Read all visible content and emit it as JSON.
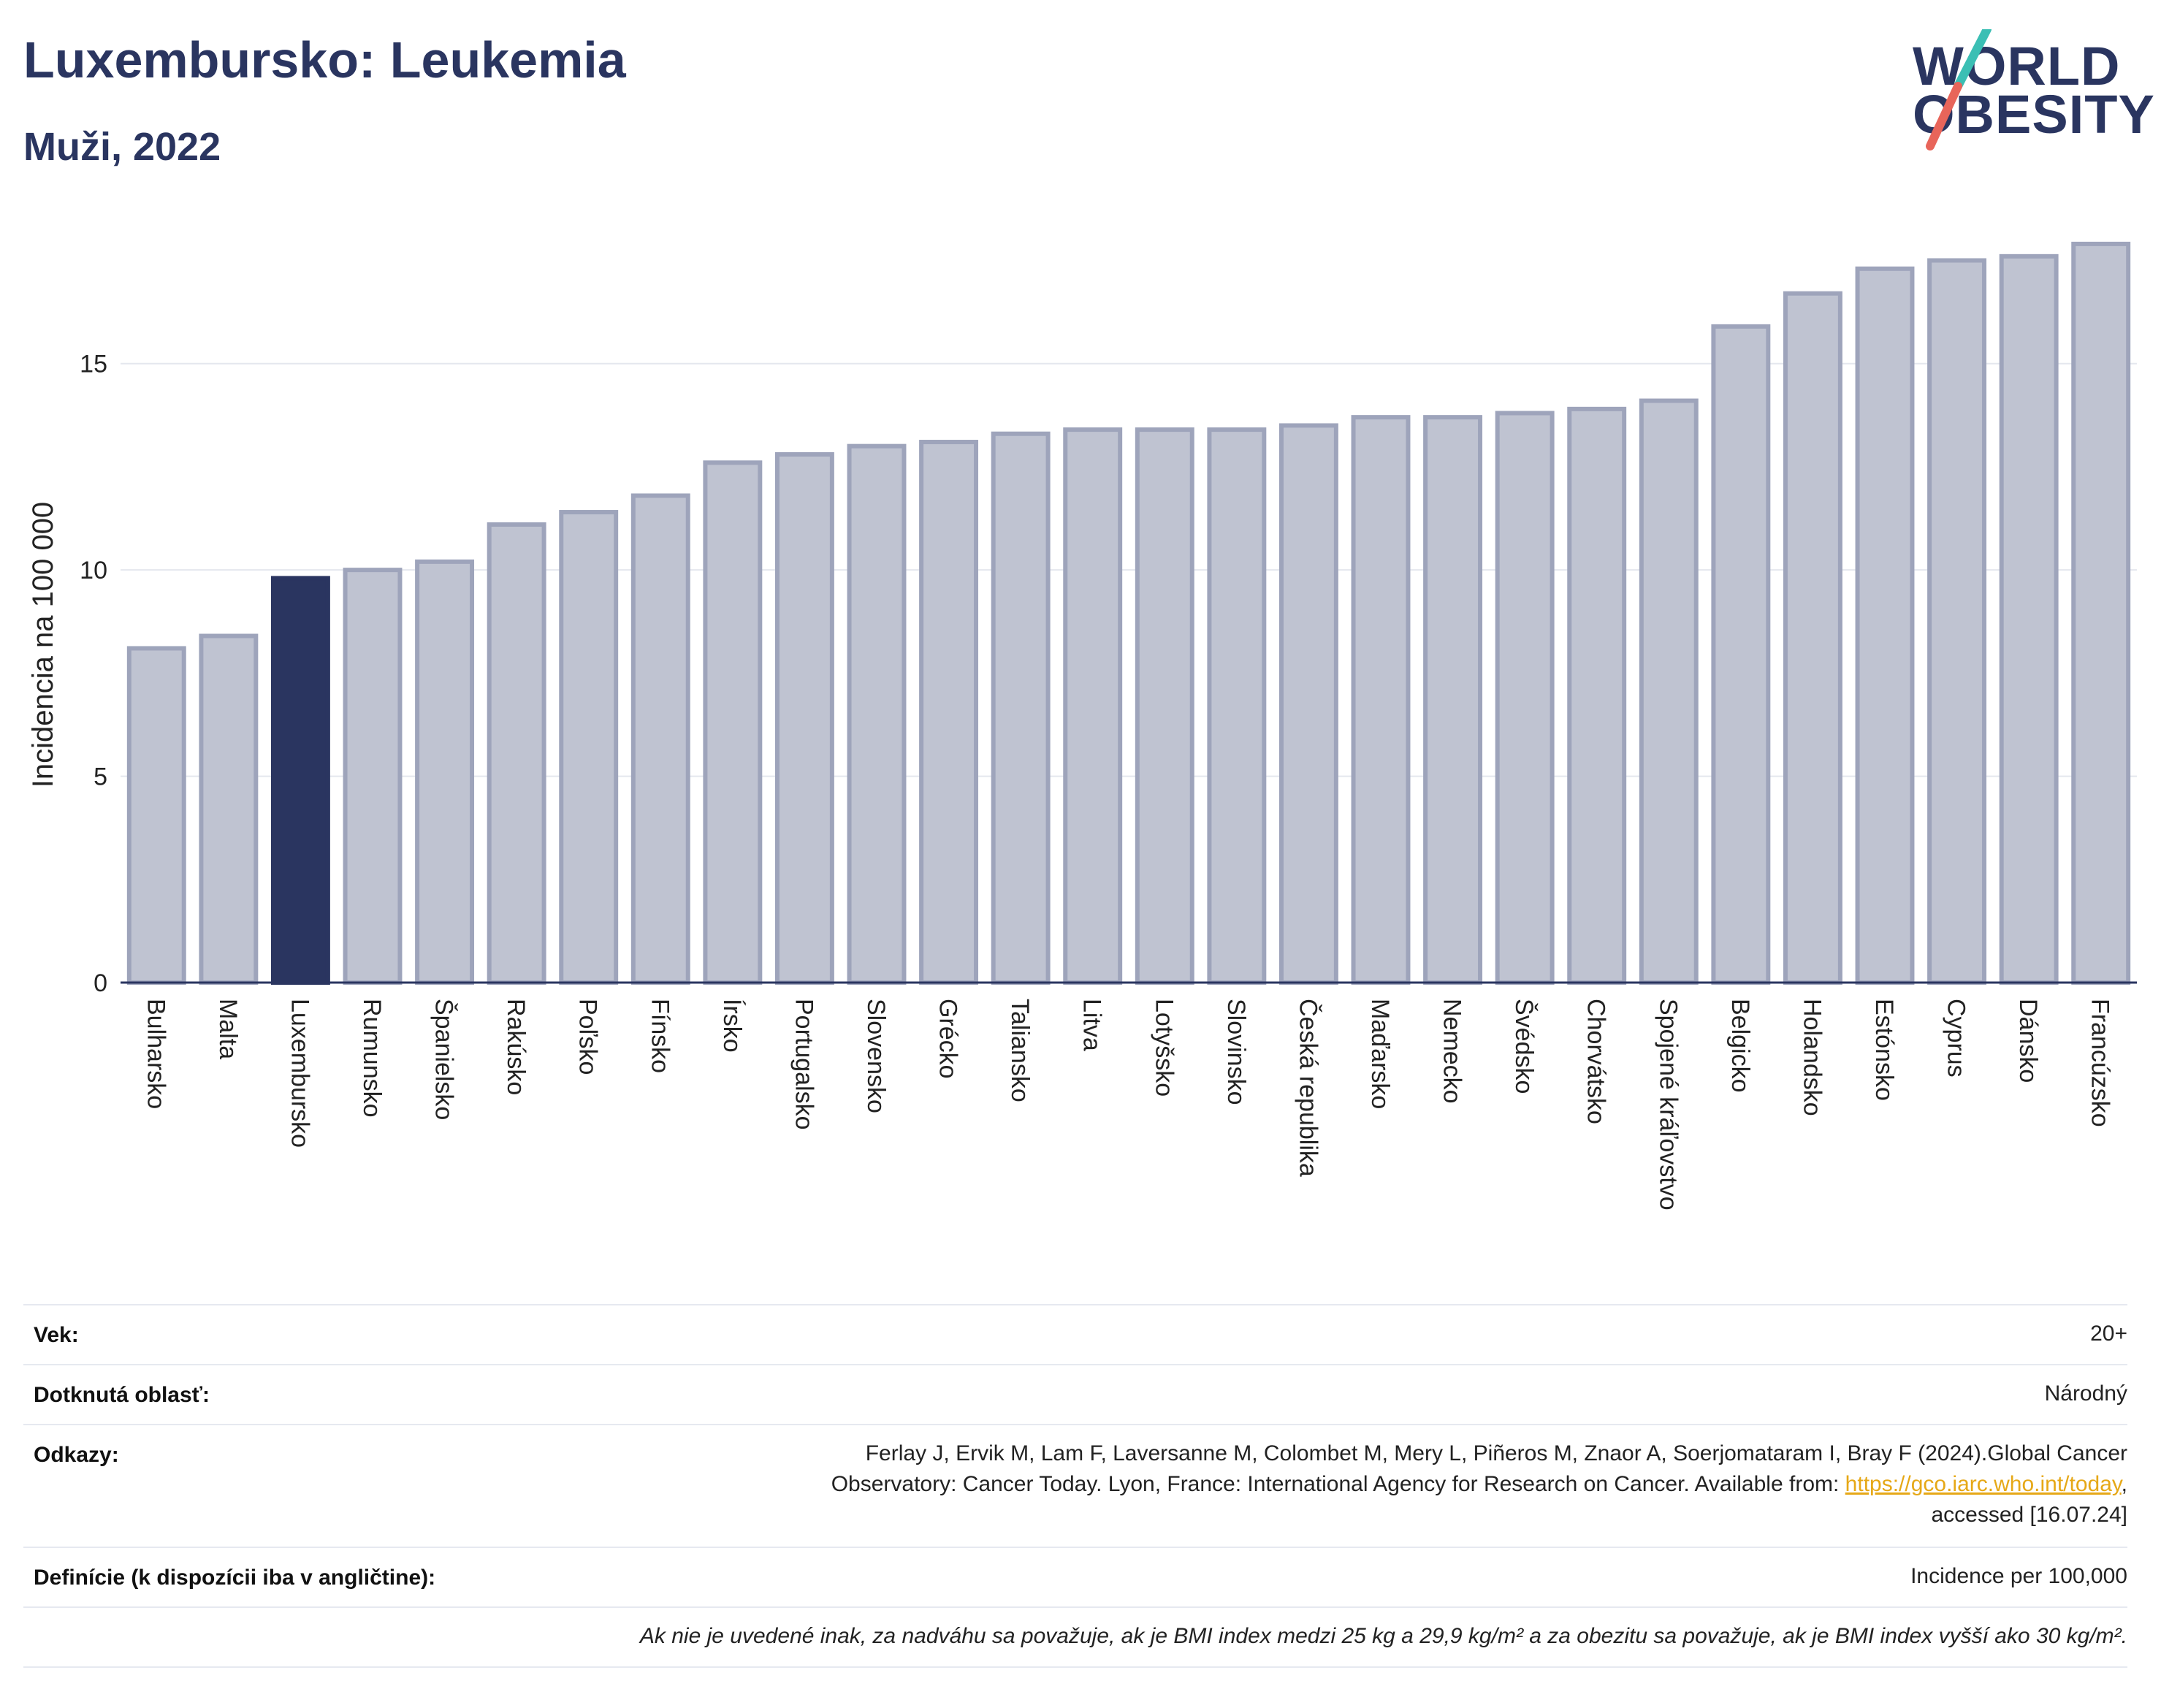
{
  "header": {
    "title": "Luxembursko: Leukemia",
    "subtitle": "Muži, 2022"
  },
  "logo": {
    "line1": "WORLD",
    "line2": "OBESITY",
    "slash_colors": [
      "#3bbfb4",
      "#e8655a"
    ]
  },
  "colors": {
    "bar_default": "#bfc3d1",
    "bar_border": "#9ea4bb",
    "bar_highlight": "#2a3560",
    "axis": "#2a3560",
    "grid": "#e4e7ee"
  },
  "chart_data": {
    "type": "bar",
    "title": "",
    "ylabel": "Incidencia na 100 000",
    "xlabel": "",
    "ylim": [
      0,
      18.5
    ],
    "yticks": [
      0,
      5,
      10,
      15
    ],
    "grid": true,
    "highlight": "Luxembursko",
    "categories": [
      "Bulharsko",
      "Malta",
      "Luxembursko",
      "Rumunsko",
      "Španielsko",
      "Rakúsko",
      "Poľsko",
      "Fínsko",
      "Írsko",
      "Portugalsko",
      "Slovensko",
      "Grécko",
      "Taliansko",
      "Litva",
      "Lotyšsko",
      "Slovinsko",
      "Česká republika",
      "Maďarsko",
      "Nemecko",
      "Švédsko",
      "Chorvátsko",
      "Spojené kráľovstvo",
      "Belgicko",
      "Holandsko",
      "Estónsko",
      "Cyprus",
      "Dánsko",
      "Francúzsko"
    ],
    "values": [
      8.1,
      8.4,
      9.8,
      10.0,
      10.2,
      11.1,
      11.4,
      11.8,
      12.6,
      12.8,
      13.0,
      13.1,
      13.3,
      13.4,
      13.4,
      13.4,
      13.5,
      13.7,
      13.7,
      13.8,
      13.9,
      14.1,
      15.9,
      16.7,
      17.3,
      17.5,
      17.6,
      17.9
    ]
  },
  "info": {
    "age_label": "Vek:",
    "age_value": "20+",
    "area_label": "Dotknutá oblasť:",
    "area_value": "Národný",
    "refs_label": "Odkazy:",
    "refs_line1": "Ferlay J, Ervik M, Lam F, Laversanne M, Colombet M, Mery L, Piñeros M, Znaor A, Soerjomataram I, Bray F (2024).Global Cancer",
    "refs_line2_pre": "Observatory: Cancer Today. Lyon, France: International Agency for Research on Cancer. Available from: ",
    "refs_link": "https://gco.iarc.who.int/today",
    "refs_line2_post": ",",
    "refs_line3": "accessed [16.07.24]",
    "def_label": "Definície (k dispozícii iba v angličtine):",
    "def_value": "Incidence per 100,000",
    "note": "Ak nie je uvedené inak, za nadváhu sa považuje, ak je BMI index medzi 25 kg a 29,9 kg/m² a za obezitu sa považuje, ak je BMI index vyšší ako 30 kg/m²."
  }
}
